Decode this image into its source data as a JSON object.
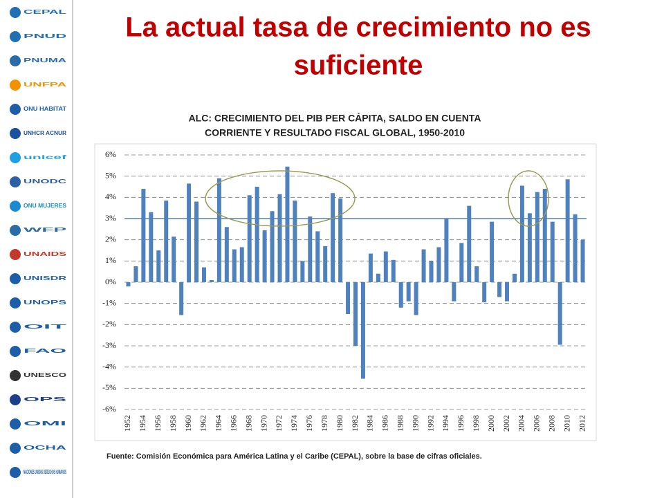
{
  "slide_title": [
    "La actual tasa de crecimiento no es",
    "suficiente"
  ],
  "logos": [
    "CEPAL",
    "PNUD",
    "PNUMA",
    "UNFPA",
    "ONU HABITAT",
    "UNHCR ACNUR",
    "unicef",
    "UNODC",
    "ONU MUJERES",
    "WFP",
    "UNAIDS",
    "UNISDR",
    "UNOPS",
    "OIT",
    "FAO",
    "UNESCO",
    "OPS",
    "OMI",
    "OCHA",
    "NACIONES UNIDAS DERECHOS HUMANOS"
  ],
  "chart_data": {
    "type": "bar",
    "title": [
      "ALC: CRECIMIENTO DEL PIB PER CÁPITA, SALDO EN CUENTA",
      "CORRIENTE Y RESULTADO FISCAL GLOBAL, 1950-2010"
    ],
    "source": "Fuente: Comisión Económica para América Latina y el Caribe (CEPAL), sobre la base de cifras oficiales.",
    "categories": [
      "1952",
      null,
      "1954",
      null,
      "1956",
      null,
      "1958",
      null,
      "1960",
      null,
      "1962",
      null,
      "1964",
      null,
      "1966",
      null,
      "1968",
      null,
      "1970",
      null,
      "1972",
      null,
      "1974",
      null,
      "1976",
      null,
      "1978",
      null,
      "1980",
      null,
      "1982",
      null,
      "1984",
      null,
      "1986",
      null,
      "1988",
      null,
      "1990",
      null,
      "1992",
      null,
      "1994",
      null,
      "1996",
      null,
      "1998",
      null,
      "2000",
      null,
      "2002",
      null,
      "2004",
      null,
      "2006",
      null,
      "2008",
      null,
      "2010",
      null,
      "2012"
    ],
    "values": [
      -0.2,
      0.75,
      4.4,
      3.3,
      1.5,
      3.85,
      2.15,
      -1.55,
      4.65,
      3.8,
      0.7,
      0.1,
      4.9,
      2.6,
      1.55,
      1.65,
      4.1,
      4.5,
      2.45,
      3.35,
      4.15,
      5.45,
      3.85,
      1.0,
      3.1,
      2.4,
      1.7,
      4.2,
      3.95,
      -1.5,
      -3.0,
      -4.55,
      1.35,
      0.4,
      1.45,
      1.05,
      -1.2,
      -0.9,
      -1.55,
      1.55,
      1.0,
      1.65,
      3.0,
      -0.9,
      1.85,
      3.6,
      0.75,
      -0.95,
      2.85,
      -0.7,
      -0.9,
      0.4,
      4.55,
      3.25,
      4.25,
      4.4,
      2.85,
      -2.95,
      4.85,
      3.2,
      2.0
    ],
    "color": "#4f81bd",
    "reference_line": 3,
    "ylim": [
      -6,
      6
    ],
    "yticks": [
      {
        "value": -6,
        "label": "-6%"
      },
      {
        "value": -5,
        "label": "-5%"
      },
      {
        "value": -4,
        "label": "-4%"
      },
      {
        "value": -3,
        "label": "-3%"
      },
      {
        "value": -2,
        "label": "-2%"
      },
      {
        "value": -1,
        "label": "-1%"
      },
      {
        "value": 0,
        "label": "0%"
      },
      {
        "value": 1,
        "label": "1%"
      },
      {
        "value": 2,
        "label": "2%"
      },
      {
        "value": 3,
        "label": "3%"
      },
      {
        "value": 4,
        "label": "4%"
      },
      {
        "value": 5,
        "label": "5%"
      },
      {
        "value": 6,
        "label": "6%"
      }
    ],
    "grid": true
  }
}
